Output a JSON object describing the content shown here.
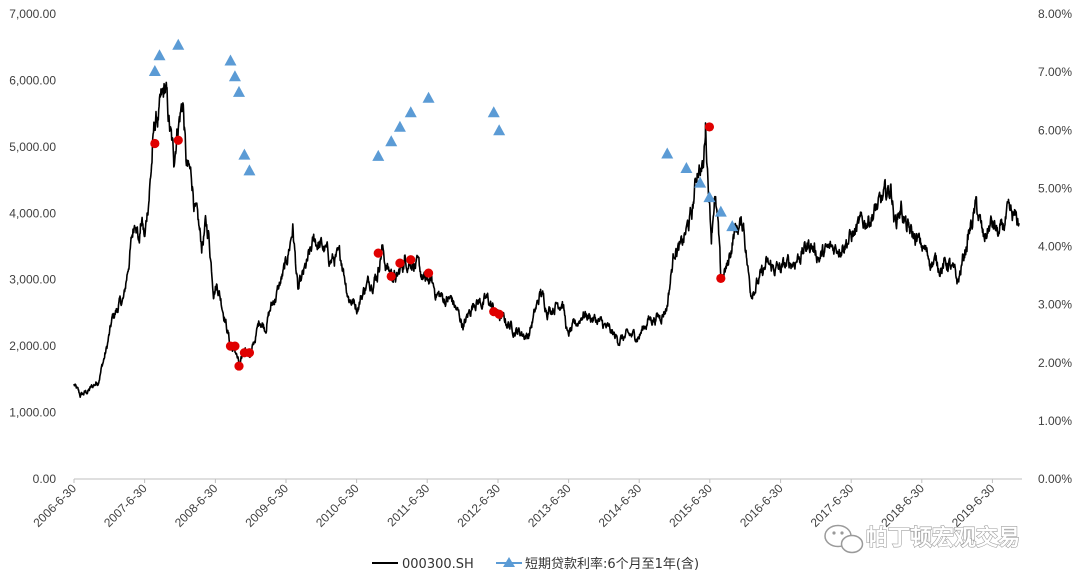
{
  "chart_data": {
    "type": "line",
    "title": "",
    "x_tick_labels": [
      "2006-6-30",
      "2007-6-30",
      "2008-6-30",
      "2009-6-30",
      "2010-6-30",
      "2011-6-30",
      "2012-6-30",
      "2013-6-30",
      "2014-6-30",
      "2015-6-30",
      "2016-6-30",
      "2017-6-30",
      "2018-6-30",
      "2019-6-30"
    ],
    "x_range": [
      "2006-06-30",
      "2019-11-30"
    ],
    "y_left": {
      "range": [
        0,
        7000
      ],
      "tick_labels": [
        "0.00",
        "1,000.00",
        "2,000.00",
        "3,000.00",
        "4,000.00",
        "5,000.00",
        "6,000.00",
        "7,000.00"
      ]
    },
    "y_right": {
      "range": [
        0,
        8
      ],
      "tick_labels": [
        "0.00%",
        "1.00%",
        "2.00%",
        "3.00%",
        "4.00%",
        "5.00%",
        "6.00%",
        "7.00%",
        "8.00%"
      ]
    },
    "grid": false,
    "legend_position": "bottom",
    "series": [
      {
        "name": "000300.SH",
        "axis": "left",
        "color": "#000000",
        "points": [
          [
            "2006-06-30",
            1420
          ],
          [
            "2006-08-01",
            1250
          ],
          [
            "2006-09-15",
            1330
          ],
          [
            "2006-11-01",
            1480
          ],
          [
            "2006-12-15",
            1950
          ],
          [
            "2007-01-15",
            2400
          ],
          [
            "2007-02-15",
            2600
          ],
          [
            "2007-03-15",
            2700
          ],
          [
            "2007-04-15",
            3400
          ],
          [
            "2007-05-15",
            4000
          ],
          [
            "2007-06-01",
            3600
          ],
          [
            "2007-06-15",
            3900
          ],
          [
            "2007-07-01",
            3600
          ],
          [
            "2007-08-01",
            4600
          ],
          [
            "2007-08-20",
            5300
          ],
          [
            "2007-09-15",
            5500
          ],
          [
            "2007-10-16",
            5850
          ],
          [
            "2007-11-05",
            5300
          ],
          [
            "2007-11-28",
            4800
          ],
          [
            "2007-12-15",
            5300
          ],
          [
            "2008-01-14",
            5700
          ],
          [
            "2008-02-01",
            4700
          ],
          [
            "2008-03-01",
            4500
          ],
          [
            "2008-03-20",
            4000
          ],
          [
            "2008-04-20",
            3500
          ],
          [
            "2008-05-10",
            3800
          ],
          [
            "2008-05-25",
            3700
          ],
          [
            "2008-06-20",
            2900
          ],
          [
            "2008-07-10",
            2950
          ],
          [
            "2008-08-15",
            2500
          ],
          [
            "2008-09-16",
            2000
          ],
          [
            "2008-10-15",
            1900
          ],
          [
            "2008-11-04",
            1650
          ],
          [
            "2008-12-01",
            2000
          ],
          [
            "2008-12-31",
            1850
          ],
          [
            "2009-02-15",
            2400
          ],
          [
            "2009-03-15",
            2300
          ],
          [
            "2009-04-15",
            2600
          ],
          [
            "2009-05-15",
            2800
          ],
          [
            "2009-06-30",
            3200
          ],
          [
            "2009-08-04",
            3800
          ],
          [
            "2009-08-31",
            2800
          ],
          [
            "2009-10-15",
            3200
          ],
          [
            "2009-11-25",
            3600
          ],
          [
            "2010-01-15",
            3450
          ],
          [
            "2010-02-15",
            3300
          ],
          [
            "2010-04-15",
            3300
          ],
          [
            "2010-05-20",
            2750
          ],
          [
            "2010-07-02",
            2600
          ],
          [
            "2010-08-15",
            2900
          ],
          [
            "2010-10-15",
            3100
          ],
          [
            "2010-11-08",
            3500
          ],
          [
            "2010-11-30",
            3200
          ],
          [
            "2011-01-25",
            3000
          ],
          [
            "2011-03-05",
            3300
          ],
          [
            "2011-04-18",
            3300
          ],
          [
            "2011-06-20",
            2950
          ],
          [
            "2011-07-15",
            3000
          ],
          [
            "2011-08-15",
            2800
          ],
          [
            "2011-09-30",
            2700
          ],
          [
            "2011-11-04",
            2700
          ],
          [
            "2012-01-05",
            2300
          ],
          [
            "2012-03-02",
            2700
          ],
          [
            "2012-04-15",
            2650
          ],
          [
            "2012-05-07",
            2700
          ],
          [
            "2012-06-07",
            2550
          ],
          [
            "2012-07-07",
            2450
          ],
          [
            "2012-09-26",
            2250
          ],
          [
            "2012-12-03",
            2150
          ],
          [
            "2013-02-06",
            2800
          ],
          [
            "2013-03-15",
            2550
          ],
          [
            "2013-05-29",
            2700
          ],
          [
            "2013-06-25",
            2150
          ],
          [
            "2013-08-15",
            2350
          ],
          [
            "2013-09-12",
            2500
          ],
          [
            "2013-11-15",
            2400
          ],
          [
            "2013-12-31",
            2300
          ],
          [
            "2014-03-10",
            2100
          ],
          [
            "2014-05-15",
            2150
          ],
          [
            "2014-06-30",
            2160
          ],
          [
            "2014-08-15",
            2400
          ],
          [
            "2014-10-15",
            2450
          ],
          [
            "2014-11-20",
            2600
          ],
          [
            "2014-12-31",
            3500
          ],
          [
            "2015-01-30",
            3450
          ],
          [
            "2015-03-31",
            4000
          ],
          [
            "2015-04-30",
            4750
          ],
          [
            "2015-05-28",
            4650
          ],
          [
            "2015-06-08",
            5350
          ],
          [
            "2015-06-20",
            4600
          ],
          [
            "2015-07-08",
            3700
          ],
          [
            "2015-07-24",
            4300
          ],
          [
            "2015-08-11",
            3800
          ],
          [
            "2015-08-26",
            3000
          ],
          [
            "2015-09-30",
            3200
          ],
          [
            "2015-11-05",
            3750
          ],
          [
            "2015-12-22",
            3850
          ],
          [
            "2016-01-15",
            3100
          ],
          [
            "2016-01-28",
            2850
          ],
          [
            "2016-03-15",
            3000
          ],
          [
            "2016-04-15",
            3200
          ],
          [
            "2016-06-30",
            3150
          ],
          [
            "2016-09-15",
            3300
          ],
          [
            "2016-11-30",
            3550
          ],
          [
            "2017-01-15",
            3350
          ],
          [
            "2017-04-15",
            3500
          ],
          [
            "2017-06-30",
            3650
          ],
          [
            "2017-08-15",
            3800
          ],
          [
            "2017-11-22",
            4100
          ],
          [
            "2018-01-24",
            4400
          ],
          [
            "2018-02-09",
            3850
          ],
          [
            "2018-03-15",
            4100
          ],
          [
            "2018-04-15",
            3750
          ],
          [
            "2018-06-30",
            3500
          ],
          [
            "2018-08-15",
            3300
          ],
          [
            "2018-10-15",
            3200
          ],
          [
            "2018-11-15",
            3250
          ],
          [
            "2019-01-03",
            2950
          ],
          [
            "2019-02-25",
            3650
          ],
          [
            "2019-04-08",
            4100
          ],
          [
            "2019-05-15",
            3600
          ],
          [
            "2019-06-25",
            3850
          ],
          [
            "2019-08-06",
            3650
          ],
          [
            "2019-09-15",
            3950
          ],
          [
            "2019-10-15",
            3900
          ],
          [
            "2019-11-15",
            3850
          ]
        ]
      },
      {
        "name": "短期贷款利率:6个月至1年(含)",
        "axis": "right",
        "color": "#5b9bd5",
        "marker": "triangle",
        "points": [
          [
            "2007-08-22",
            7.02
          ],
          [
            "2007-09-15",
            7.29
          ],
          [
            "2007-12-21",
            7.47
          ],
          [
            "2008-09-16",
            7.2
          ],
          [
            "2008-10-09",
            6.93
          ],
          [
            "2008-10-30",
            6.66
          ],
          [
            "2008-11-27",
            5.58
          ],
          [
            "2008-12-23",
            5.31
          ],
          [
            "2010-10-20",
            5.56
          ],
          [
            "2010-12-26",
            5.81
          ],
          [
            "2011-02-09",
            6.06
          ],
          [
            "2011-04-06",
            6.31
          ],
          [
            "2011-07-07",
            6.56
          ],
          [
            "2012-06-08",
            6.31
          ],
          [
            "2012-07-06",
            6.0
          ],
          [
            "2014-11-22",
            5.6
          ],
          [
            "2015-03-01",
            5.35
          ],
          [
            "2015-05-11",
            5.1
          ],
          [
            "2015-06-28",
            4.85
          ],
          [
            "2015-08-26",
            4.6
          ],
          [
            "2015-10-24",
            4.35
          ]
        ]
      }
    ],
    "highlight_points": {
      "axis": "left",
      "color": "#e00000",
      "points": [
        [
          "2007-08-22",
          5050
        ],
        [
          "2007-12-21",
          5100
        ],
        [
          "2008-09-16",
          2000
        ],
        [
          "2008-10-09",
          2000
        ],
        [
          "2008-10-30",
          1700
        ],
        [
          "2008-11-27",
          1900
        ],
        [
          "2008-12-23",
          1900
        ],
        [
          "2010-10-20",
          3400
        ],
        [
          "2010-12-26",
          3050
        ],
        [
          "2011-02-09",
          3250
        ],
        [
          "2011-04-06",
          3300
        ],
        [
          "2011-07-07",
          3100
        ],
        [
          "2012-06-08",
          2520
        ],
        [
          "2012-07-06",
          2480
        ],
        [
          "2015-06-28",
          5300
        ],
        [
          "2015-08-26",
          3020
        ]
      ]
    }
  },
  "legend": {
    "item_1": "000300.SH",
    "item_2": "短期贷款利率:6个月至1年(含)"
  },
  "watermark": {
    "text": "帕丁顿宏观交易"
  }
}
